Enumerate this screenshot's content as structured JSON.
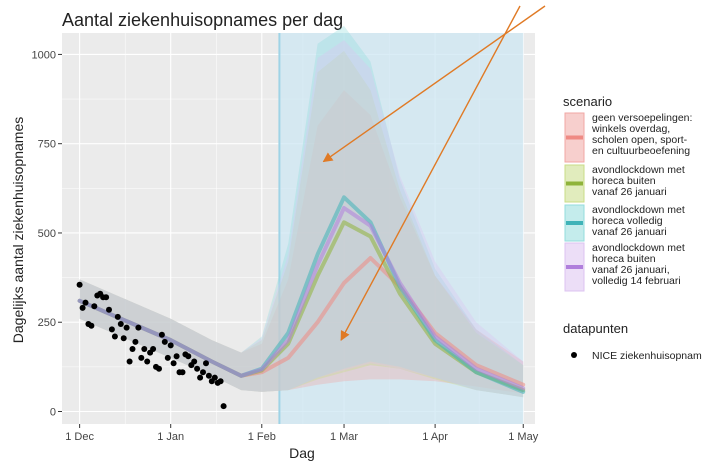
{
  "chart_data": {
    "type": "line",
    "title": "Aantal ziekenhuisopnames per dag",
    "xlabel": "Dag",
    "ylabel": "Dagelijks aantal ziekenhuisopnames",
    "xlim": [
      "2020-11-25",
      "2021-05-05"
    ],
    "ylim": [
      -35,
      1060
    ],
    "x_ticks": [
      {
        "date": "2020-12-01",
        "label": "1 Dec"
      },
      {
        "date": "2021-01-01",
        "label": "1 Jan"
      },
      {
        "date": "2021-02-01",
        "label": "1 Feb"
      },
      {
        "date": "2021-03-01",
        "label": "1 Mar"
      },
      {
        "date": "2021-04-01",
        "label": "1 Apr"
      },
      {
        "date": "2021-05-01",
        "label": "1 May"
      }
    ],
    "y_ticks": [
      0,
      250,
      500,
      750,
      1000
    ],
    "grid": true,
    "background_color": "#ebebeb",
    "highlight_region": {
      "start": "2021-02-07",
      "end": "2021-05-01",
      "color": "#cde7f3",
      "border_color": "#9fd3e6"
    },
    "legend_placement": "right",
    "series_legend_title": "scenario",
    "points_legend_title": "datapunten",
    "series": [
      {
        "name": "geen versoepelingen:\nwinkels overdag,\nscholen open, sport-\nen cultuurbeoefening",
        "color": "#f1a7a4",
        "line_color": "#ef8a84",
        "x": [
          "2020-12-01",
          "2020-12-15",
          "2021-01-01",
          "2021-01-15",
          "2021-01-25",
          "2021-02-01",
          "2021-02-10",
          "2021-02-20",
          "2021-03-01",
          "2021-03-10",
          "2021-03-20",
          "2021-04-01",
          "2021-04-15",
          "2021-05-01"
        ],
        "y": [
          310,
          260,
          200,
          140,
          100,
          110,
          150,
          250,
          360,
          430,
          350,
          220,
          130,
          75
        ],
        "lower": [
          260,
          210,
          150,
          100,
          60,
          55,
          60,
          75,
          85,
          90,
          90,
          85,
          70,
          50
        ],
        "upper": [
          370,
          320,
          260,
          200,
          165,
          190,
          370,
          800,
          900,
          830,
          600,
          380,
          230,
          140
        ]
      },
      {
        "name": "avondlockdown met\nhoreca buiten\nvanaf 26 januari",
        "color": "#c9dd87",
        "line_color": "#8fb33a",
        "x": [
          "2020-12-01",
          "2020-12-15",
          "2021-01-01",
          "2021-01-15",
          "2021-01-25",
          "2021-02-01",
          "2021-02-10",
          "2021-02-20",
          "2021-03-01",
          "2021-03-10",
          "2021-03-20",
          "2021-04-01",
          "2021-04-15",
          "2021-05-01"
        ],
        "y": [
          310,
          260,
          200,
          140,
          100,
          115,
          190,
          380,
          530,
          490,
          330,
          190,
          110,
          60
        ],
        "lower": [
          260,
          210,
          150,
          100,
          60,
          55,
          60,
          90,
          110,
          130,
          120,
          90,
          60,
          40
        ],
        "upper": [
          370,
          320,
          260,
          200,
          165,
          200,
          420,
          950,
          1010,
          900,
          620,
          380,
          220,
          130
        ]
      },
      {
        "name": "avondlockdown met\nhoreca volledig\nvanaf 26 januari",
        "color": "#93dddd",
        "line_color": "#3fb3b8",
        "x": [
          "2020-12-01",
          "2020-12-15",
          "2021-01-01",
          "2021-01-15",
          "2021-01-25",
          "2021-02-01",
          "2021-02-10",
          "2021-02-20",
          "2021-03-01",
          "2021-03-10",
          "2021-03-20",
          "2021-04-01",
          "2021-04-15",
          "2021-05-01"
        ],
        "y": [
          310,
          260,
          200,
          140,
          100,
          120,
          220,
          440,
          600,
          530,
          350,
          200,
          110,
          55
        ],
        "lower": [
          260,
          210,
          150,
          100,
          60,
          55,
          60,
          95,
          120,
          140,
          125,
          95,
          60,
          40
        ],
        "upper": [
          370,
          320,
          260,
          200,
          165,
          210,
          470,
          1030,
          1080,
          980,
          650,
          400,
          230,
          130
        ]
      },
      {
        "name": "avondlockdown met\nhoreca buiten\nvanaf 26 januari,\nvolledig 14 februari",
        "color": "#ddc3f1",
        "line_color": "#b07fdc",
        "x": [
          "2020-12-01",
          "2020-12-15",
          "2021-01-01",
          "2021-01-15",
          "2021-01-25",
          "2021-02-01",
          "2021-02-10",
          "2021-02-20",
          "2021-03-01",
          "2021-03-10",
          "2021-03-20",
          "2021-04-01",
          "2021-04-15",
          "2021-05-01"
        ],
        "y": [
          310,
          260,
          200,
          140,
          100,
          118,
          200,
          410,
          570,
          520,
          360,
          210,
          120,
          65
        ],
        "lower": [
          260,
          210,
          150,
          100,
          60,
          55,
          60,
          95,
          115,
          135,
          120,
          95,
          60,
          40
        ],
        "upper": [
          370,
          320,
          260,
          200,
          165,
          205,
          440,
          990,
          1040,
          960,
          660,
          420,
          250,
          140
        ]
      }
    ],
    "points": {
      "name": "NICE ziekenhuisopnam",
      "color": "#000000",
      "x": [
        "2020-12-01",
        "2020-12-02",
        "2020-12-03",
        "2020-12-04",
        "2020-12-05",
        "2020-12-06",
        "2020-12-07",
        "2020-12-08",
        "2020-12-09",
        "2020-12-10",
        "2020-12-11",
        "2020-12-12",
        "2020-12-13",
        "2020-12-14",
        "2020-12-15",
        "2020-12-16",
        "2020-12-17",
        "2020-12-18",
        "2020-12-19",
        "2020-12-20",
        "2020-12-21",
        "2020-12-22",
        "2020-12-23",
        "2020-12-24",
        "2020-12-25",
        "2020-12-26",
        "2020-12-27",
        "2020-12-28",
        "2020-12-29",
        "2020-12-30",
        "2020-12-31",
        "2021-01-01",
        "2021-01-02",
        "2021-01-03",
        "2021-01-04",
        "2021-01-05",
        "2021-01-06",
        "2021-01-07",
        "2021-01-08",
        "2021-01-09",
        "2021-01-10",
        "2021-01-11",
        "2021-01-12",
        "2021-01-13",
        "2021-01-14",
        "2021-01-15",
        "2021-01-16",
        "2021-01-17",
        "2021-01-18",
        "2021-01-19"
      ],
      "y": [
        355,
        290,
        305,
        245,
        240,
        295,
        325,
        330,
        320,
        320,
        285,
        230,
        210,
        265,
        245,
        205,
        235,
        140,
        175,
        195,
        235,
        150,
        175,
        140,
        165,
        175,
        125,
        120,
        215,
        195,
        150,
        185,
        135,
        155,
        110,
        110,
        160,
        155,
        130,
        140,
        120,
        95,
        110,
        135,
        100,
        85,
        95,
        80,
        85,
        15
      ]
    },
    "annotations": [
      {
        "type": "arrow",
        "color": "#e07a25",
        "target": {
          "date": "2021-02-22",
          "value": 700
        }
      },
      {
        "type": "arrow",
        "color": "#e07a25",
        "target": {
          "date": "2021-02-28",
          "value": 200
        }
      }
    ]
  }
}
